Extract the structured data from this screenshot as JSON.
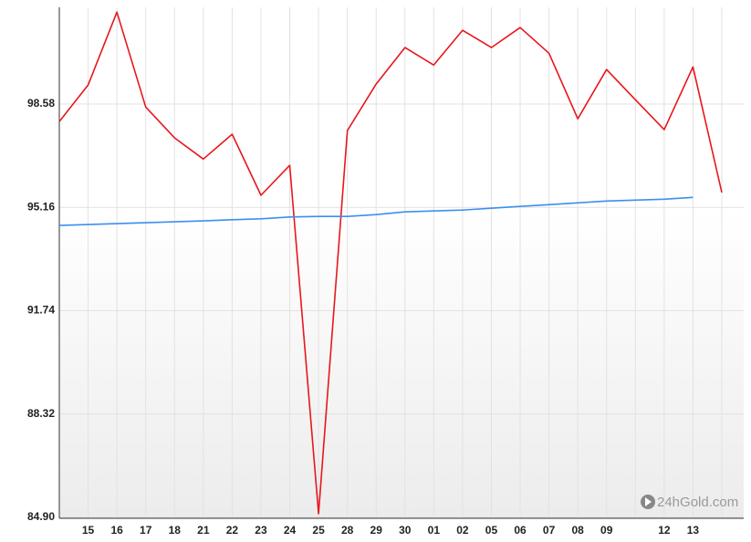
{
  "chart_data": {
    "type": "line",
    "categories": [
      null,
      "15",
      "16",
      "17",
      "18",
      "21",
      "22",
      "23",
      "24",
      "25",
      "28",
      "29",
      "30",
      "01",
      "02",
      "05",
      "06",
      "07",
      "08",
      "09",
      null,
      "12",
      "13",
      null
    ],
    "series": [
      {
        "color": "#e8161c",
        "values": [
          98.0,
          99.21,
          101.62,
          98.48,
          97.46,
          96.76,
          97.58,
          95.56,
          96.55,
          85.02,
          97.7,
          99.24,
          100.45,
          99.87,
          101.02,
          100.45,
          101.11,
          100.26,
          98.09,
          99.72,
          98.72,
          97.73,
          99.81,
          95.65
        ]
      },
      {
        "color": "#3b8ff0",
        "values": [
          94.56,
          94.59,
          94.62,
          94.65,
          94.68,
          94.71,
          94.75,
          94.78,
          94.84,
          94.86,
          94.86,
          94.92,
          95.01,
          95.04,
          95.07,
          95.13,
          95.19,
          95.25,
          95.31,
          95.37,
          95.4,
          95.43,
          95.49,
          null
        ]
      }
    ],
    "ylim": [
      84.9,
      101.72
    ],
    "yticks": [
      {
        "value": 84.9,
        "label": "84.90"
      },
      88.32,
      91.74,
      95.16,
      98.58
    ],
    "grid": true,
    "watermark": "24hGold.com"
  }
}
